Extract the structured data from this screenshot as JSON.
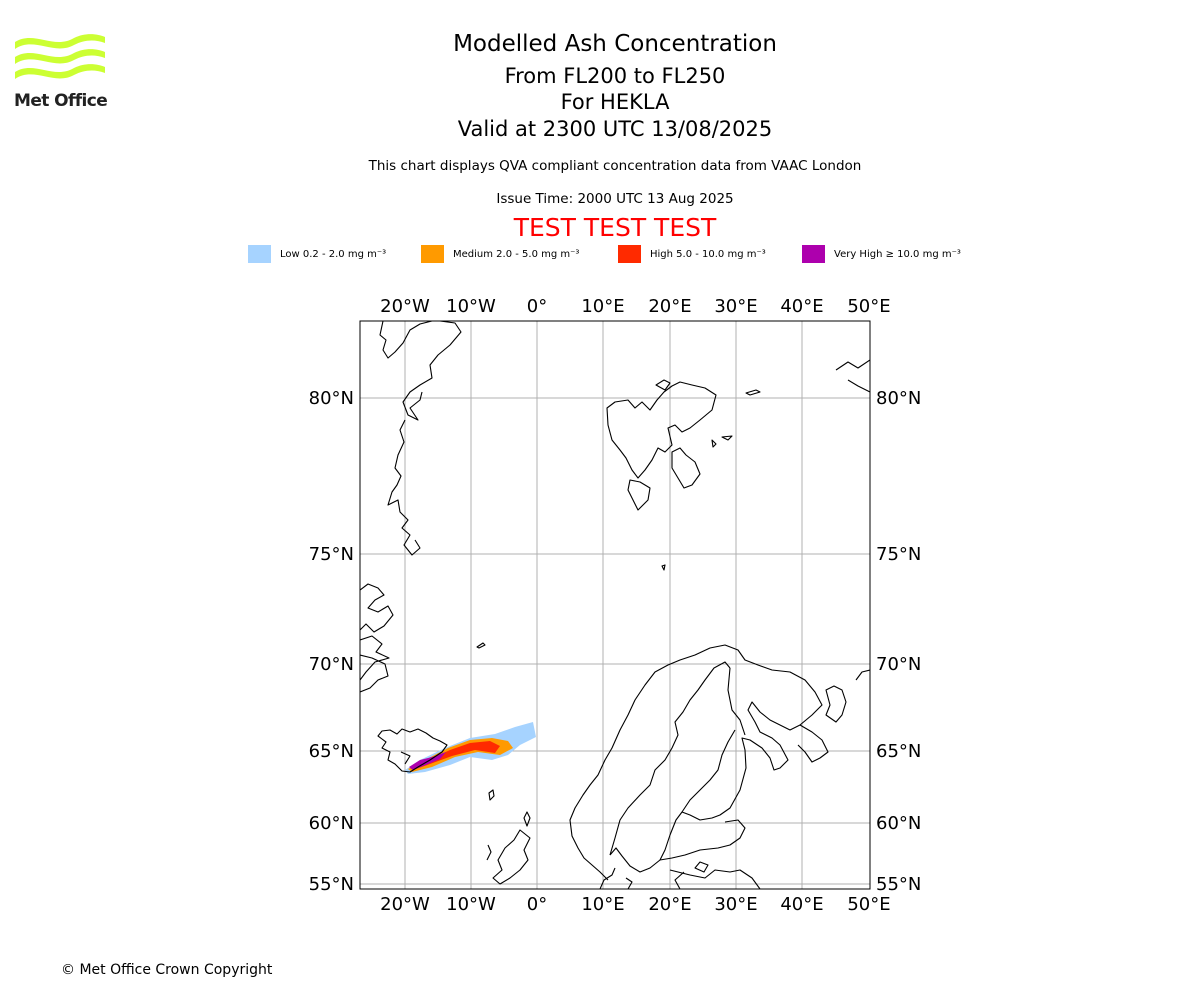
{
  "header": {
    "brand": "Met Office",
    "title": "Modelled Ash Concentration",
    "levels": "From FL200 to FL250",
    "volcano": "For HEKLA",
    "valid": "Valid at 2300 UTC 13/08/2025",
    "source_note": "This chart displays QVA compliant concentration data from VAAC London",
    "issue_time": "Issue Time: 2000 UTC 13 Aug 2025",
    "test_banner": "TEST TEST TEST"
  },
  "legend": [
    {
      "text": "Low 0.2 - 2.0 mg m⁻³",
      "color": "#a6d3ff"
    },
    {
      "text": "Medium 2.0 - 5.0 mg m⁻³",
      "color": "#ff9a00"
    },
    {
      "text": "High 5.0 - 10.0 mg m⁻³",
      "color": "#ff2a00"
    },
    {
      "text": "Very High ≥ 10.0 mg m⁻³",
      "color": "#ad00ad"
    }
  ],
  "map": {
    "projection": "Mercator",
    "lon_ticks": [
      "20°W",
      "10°W",
      "0°",
      "10°E",
      "20°E",
      "30°E",
      "40°E",
      "50°E"
    ],
    "lat_ticks": [
      "80°N",
      "75°N",
      "70°N",
      "65°N",
      "60°N",
      "55°N"
    ],
    "lon_range": [
      -27,
      50
    ],
    "lat_range": [
      54.5,
      82.5
    ],
    "grid": true,
    "gridline_color": "#b0b0b0",
    "coastline_color": "#000000",
    "volcano_location": "Hekla, Iceland",
    "plume_direction": "northeast"
  },
  "footer": {
    "copyright": "© Met Office Crown Copyright"
  }
}
